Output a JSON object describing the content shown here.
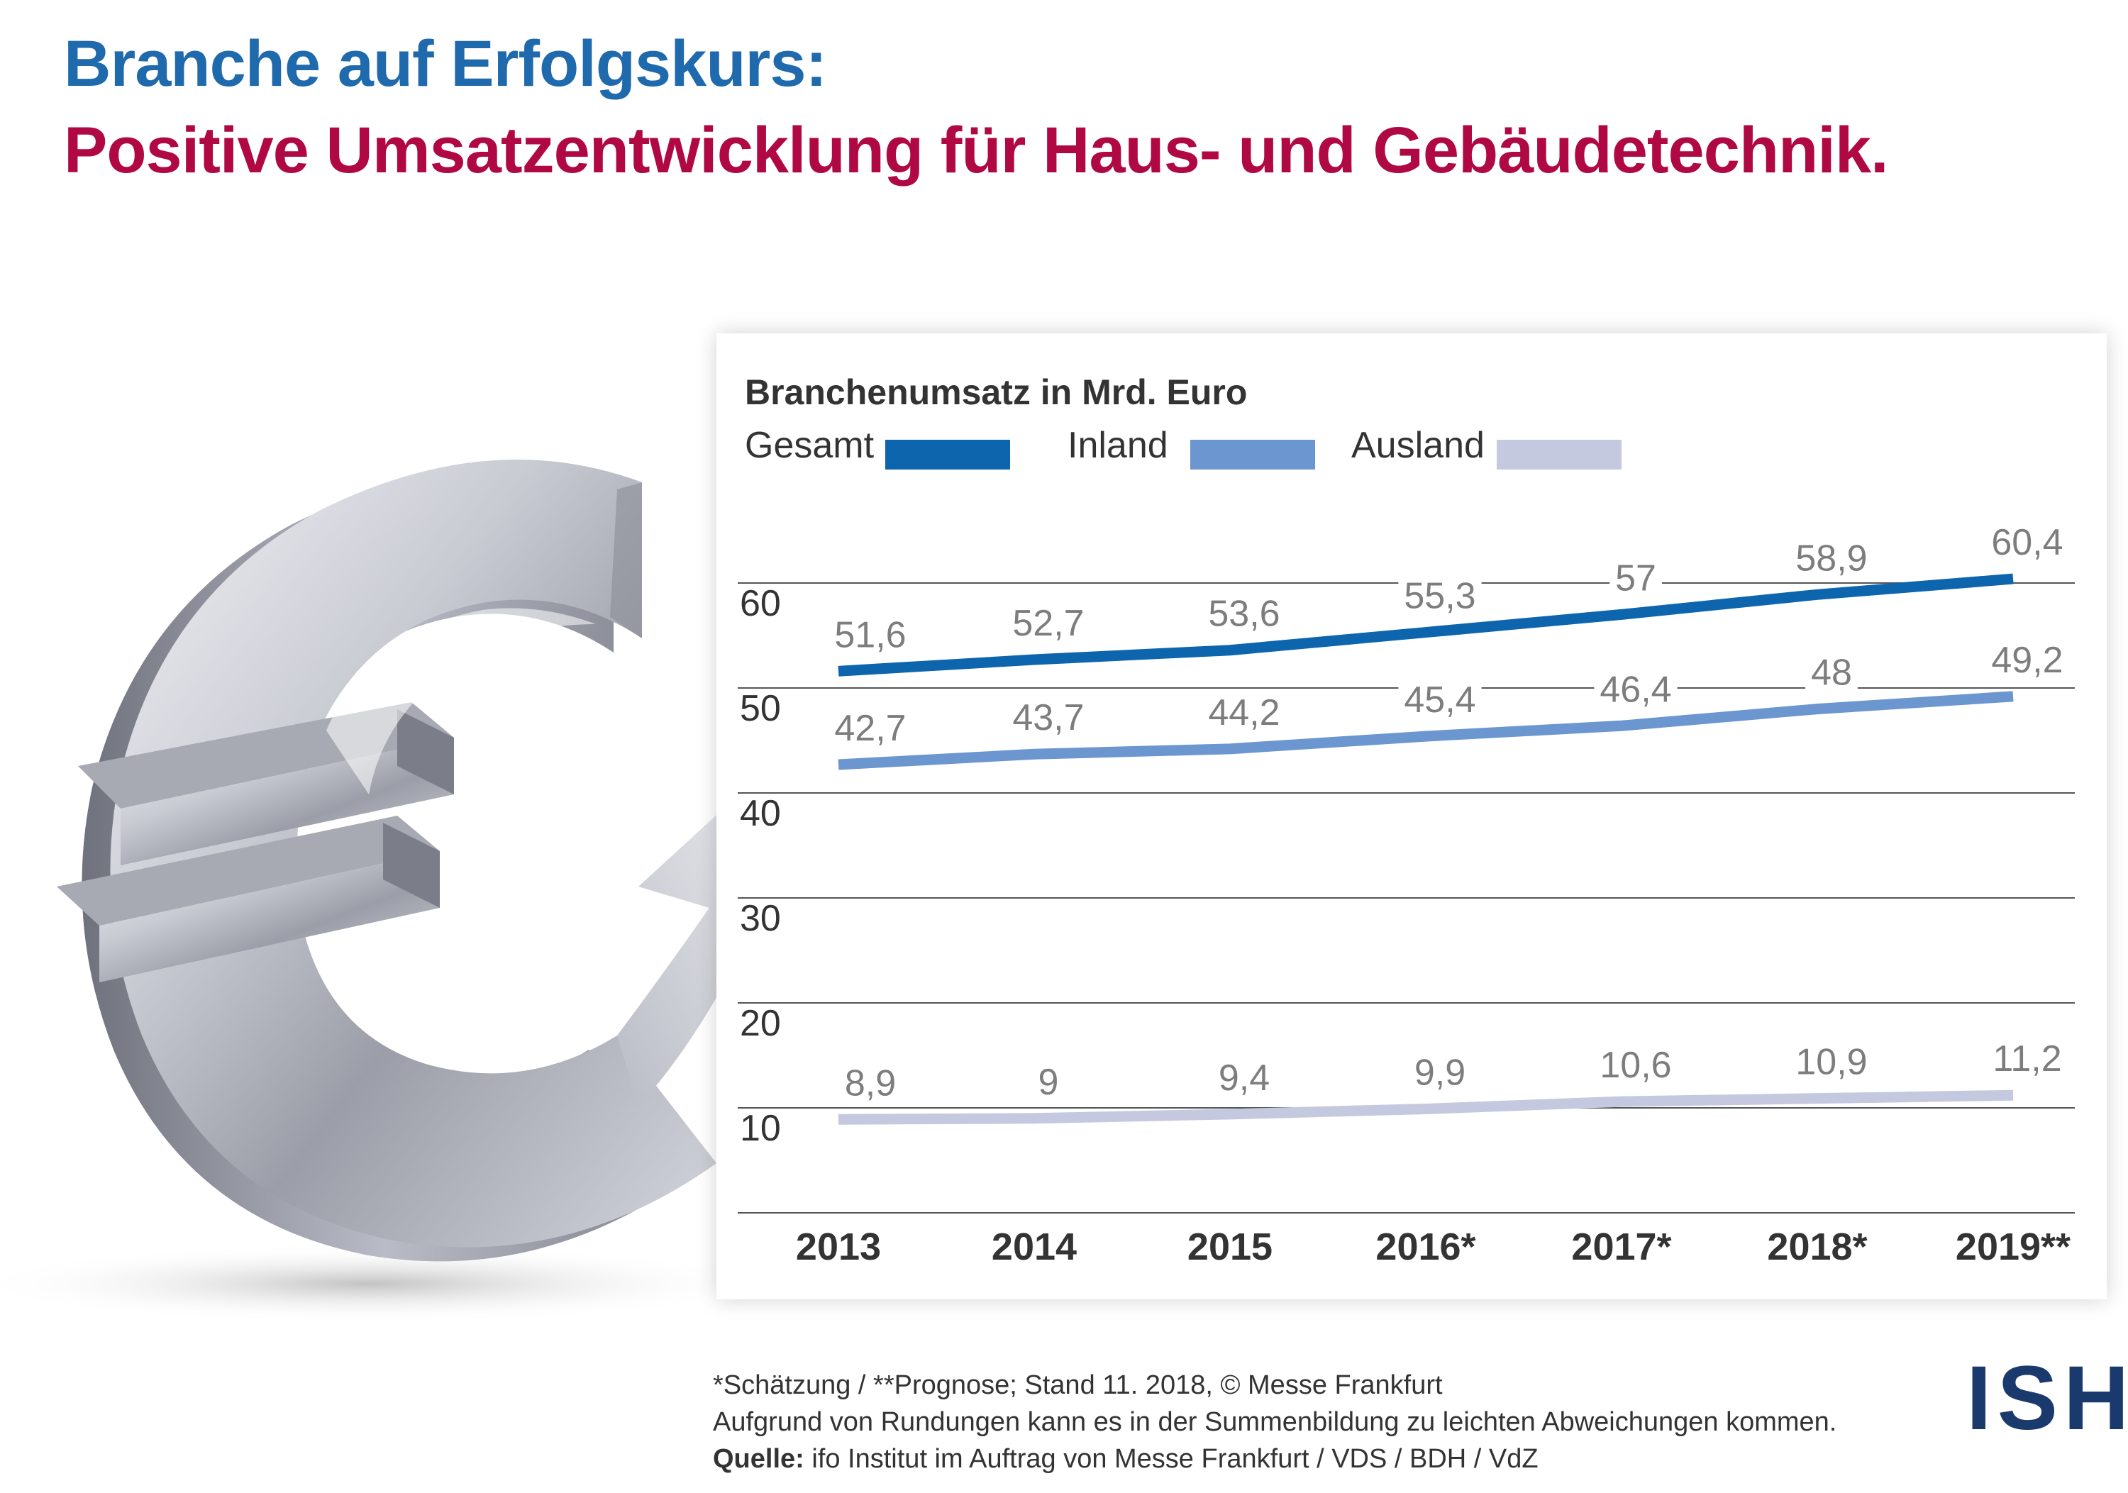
{
  "headline": {
    "line1": "Branche auf Erfolgskurs:",
    "line2": "Positive Umsatzentwicklung für Haus- und Gebäudetechnik."
  },
  "colors": {
    "headline1": "#1f6aad",
    "headline2": "#b00843",
    "gesamt": "#0d65ae",
    "inland": "#6b96cf",
    "ausland": "#c5c9df",
    "value_label": "#7d7d7d",
    "axis_text": "#333333",
    "gridline": "#555555",
    "logo": "#1a3a6e"
  },
  "footnotes": {
    "line1": "*Schätzung / **Prognose; Stand 11. 2018, © Messe Frankfurt",
    "line2": "Aufgrund von Rundungen kann es in der Summenbildung zu leichten Abweichungen kommen.",
    "source_label": "Quelle:",
    "source_text": " ifo Institut im Auftrag von Messe Frankfurt / VDS / BDH / VdZ"
  },
  "logo": {
    "text": "ISH"
  },
  "chart_data": {
    "type": "line",
    "title": "Branchenumsatz in Mrd. Euro",
    "xlabel": "",
    "ylabel": "",
    "categories": [
      "2013",
      "2014",
      "2015",
      "2016*",
      "2017*",
      "2018*",
      "2019**"
    ],
    "y_ticks": [
      "60",
      "50",
      "40",
      "30",
      "20",
      "10"
    ],
    "ylim": [
      0,
      64
    ],
    "grid": true,
    "legend": "top-left, horizontal",
    "series": [
      {
        "name": "Gesamt",
        "values": [
          51.6,
          52.7,
          53.6,
          55.3,
          57,
          58.9,
          60.4
        ],
        "labels": [
          "51,6",
          "52,7",
          "53,6",
          "55,3",
          "57",
          "58,9",
          "60,4"
        ]
      },
      {
        "name": "Inland",
        "values": [
          42.7,
          43.7,
          44.2,
          45.4,
          46.4,
          48,
          49.2
        ],
        "labels": [
          "42,7",
          "43,7",
          "44,2",
          "45,4",
          "46,4",
          "48",
          "49,2"
        ]
      },
      {
        "name": "Ausland",
        "values": [
          8.9,
          9,
          9.4,
          9.9,
          10.6,
          10.9,
          11.2
        ],
        "labels": [
          "8,9",
          "9",
          "9,4",
          "9,9",
          "10,6",
          "10,9",
          "11,2"
        ]
      }
    ]
  }
}
